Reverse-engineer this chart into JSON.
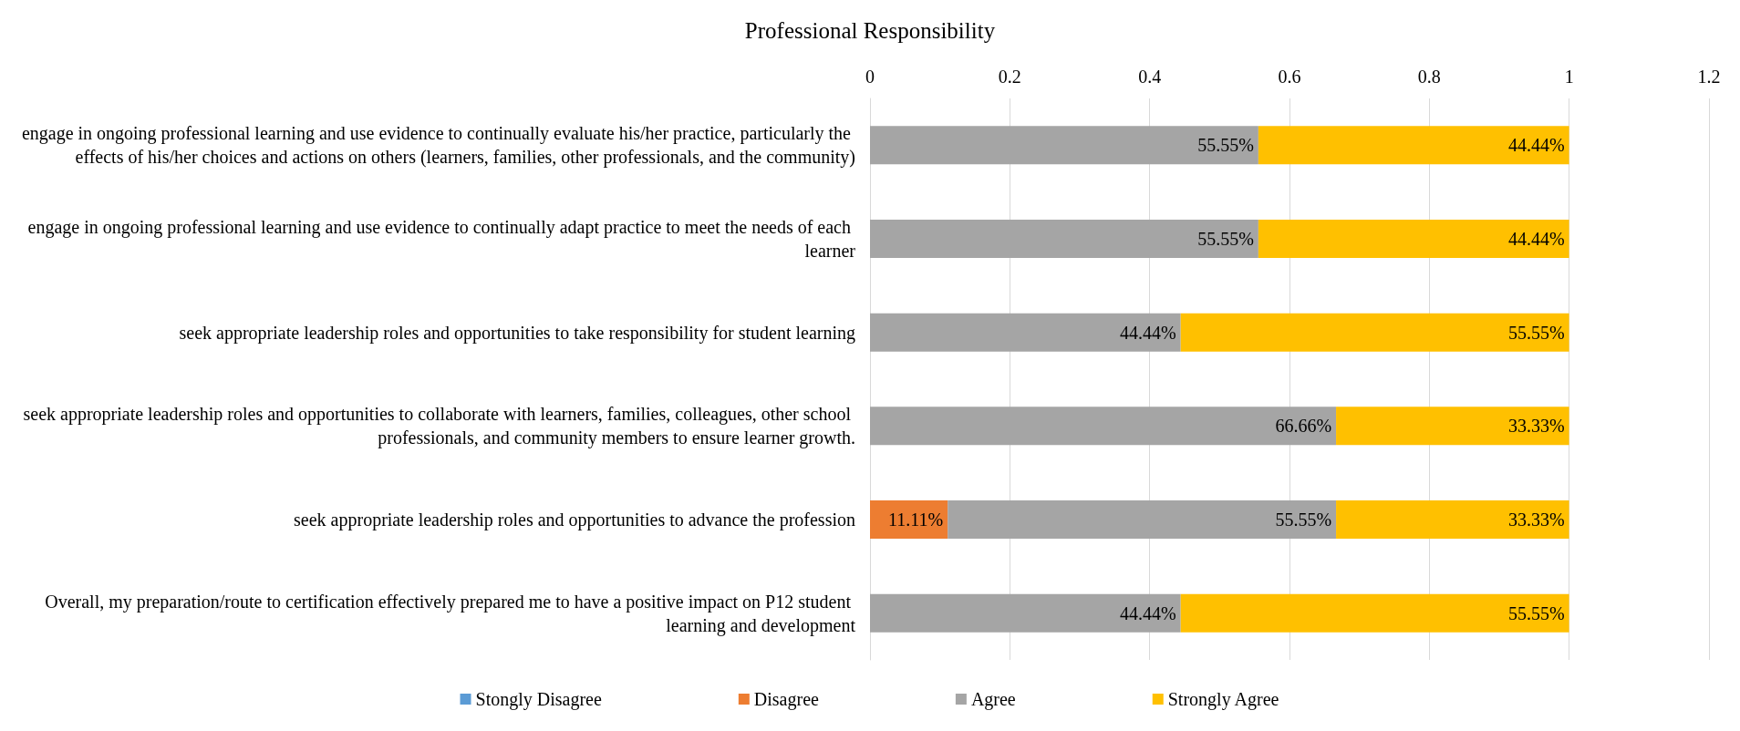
{
  "chart_data": {
    "type": "bar",
    "orientation": "horizontal",
    "stacked": true,
    "title": "Professional Responsibility",
    "categories": [
      "engage in ongoing professional learning and use evidence to continually evaluate his/her practice, particularly the effects of his/her choices and actions on others (learners, families, other professionals, and the community)",
      "engage in ongoing professional learning and use evidence to continually adapt practice to meet the needs of each learner",
      "seek appropriate leadership roles and opportunities to take responsibility for student learning",
      "seek appropriate leadership roles and opportunities to collaborate with learners, families, colleagues, other school professionals, and community members to ensure learner growth.",
      "seek appropriate leadership roles and opportunities to advance the profession",
      "Overall, my preparation/route to certification effectively prepared me to have a positive impact on P12 student learning and development"
    ],
    "series": [
      {
        "name": "Stongly Disagree",
        "color": "#5b9bd5",
        "values": [
          0,
          0,
          0,
          0,
          0,
          0
        ],
        "value_labels": [
          null,
          null,
          null,
          null,
          null,
          null
        ]
      },
      {
        "name": "Disagree",
        "color": "#ed7d31",
        "values": [
          0,
          0,
          0,
          0,
          0.1111,
          0
        ],
        "value_labels": [
          null,
          null,
          null,
          null,
          "11.11%",
          null
        ]
      },
      {
        "name": "Agree",
        "color": "#a5a5a5",
        "values": [
          0.5555,
          0.5555,
          0.4444,
          0.6666,
          0.5555,
          0.4444
        ],
        "value_labels": [
          "55.55%",
          "55.55%",
          "44.44%",
          "66.66%",
          "55.55%",
          "44.44%"
        ]
      },
      {
        "name": "Strongly Agree",
        "color": "#ffc000",
        "values": [
          0.4444,
          0.4444,
          0.5555,
          0.3333,
          0.3333,
          0.5555
        ],
        "value_labels": [
          "44.44%",
          "44.44%",
          "55.55%",
          "33.33%",
          "33.33%",
          "55.55%"
        ]
      }
    ],
    "xlim": [
      0,
      1.2
    ],
    "xticks": [
      0,
      0.2,
      0.4,
      0.6,
      0.8,
      1,
      1.2
    ],
    "grid": "x",
    "legend": "bottom"
  }
}
